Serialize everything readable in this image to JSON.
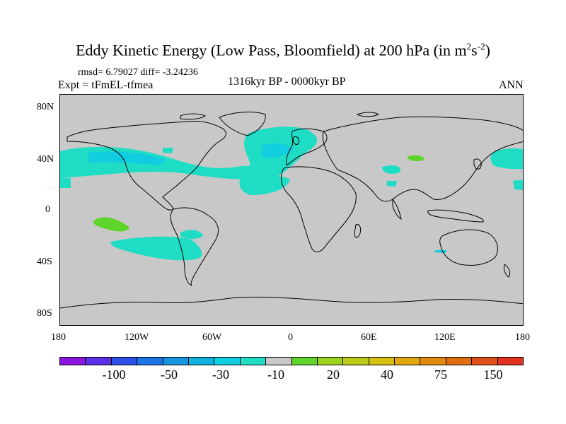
{
  "title_main": "Eddy Kinetic Energy (Low Pass, Bloomfield) at 200 hPa (in m",
  "title_sup1": "2",
  "title_s": "s",
  "title_sup2": "-2",
  "title_end": ")",
  "stats": "rmsd= 6.79027 diff= -3.24236",
  "expt": "Expt = tFmEL-tfmea",
  "period": "1316kyr BP - 0000kyr BP",
  "season": "ANN",
  "lat_ticks": [
    "80N",
    "40N",
    "0",
    "40S",
    "80S"
  ],
  "lon_ticks": [
    "180",
    "120W",
    "60W",
    "0",
    "60E",
    "120E",
    "180"
  ],
  "colorbar": {
    "colors": [
      "#8c16e0",
      "#5a2fe6",
      "#2c4fe8",
      "#1e73e6",
      "#1896e0",
      "#12b2e0",
      "#10cde0",
      "#1fddc4",
      "#c8c8c8",
      "#5fd42a",
      "#9ad21e",
      "#bccc18",
      "#d8c012",
      "#e0a80e",
      "#e08a0e",
      "#e06e10",
      "#e0501a",
      "#e0321e"
    ],
    "labels": [
      "-100",
      "-50",
      "-30",
      "-10",
      "20",
      "40",
      "75",
      "150"
    ]
  },
  "colors": {
    "ocean": "#c8c8c8",
    "neg_cyan": "#1fddc4",
    "neg_blue": "#10cde0",
    "pos_green": "#5fd42a"
  }
}
